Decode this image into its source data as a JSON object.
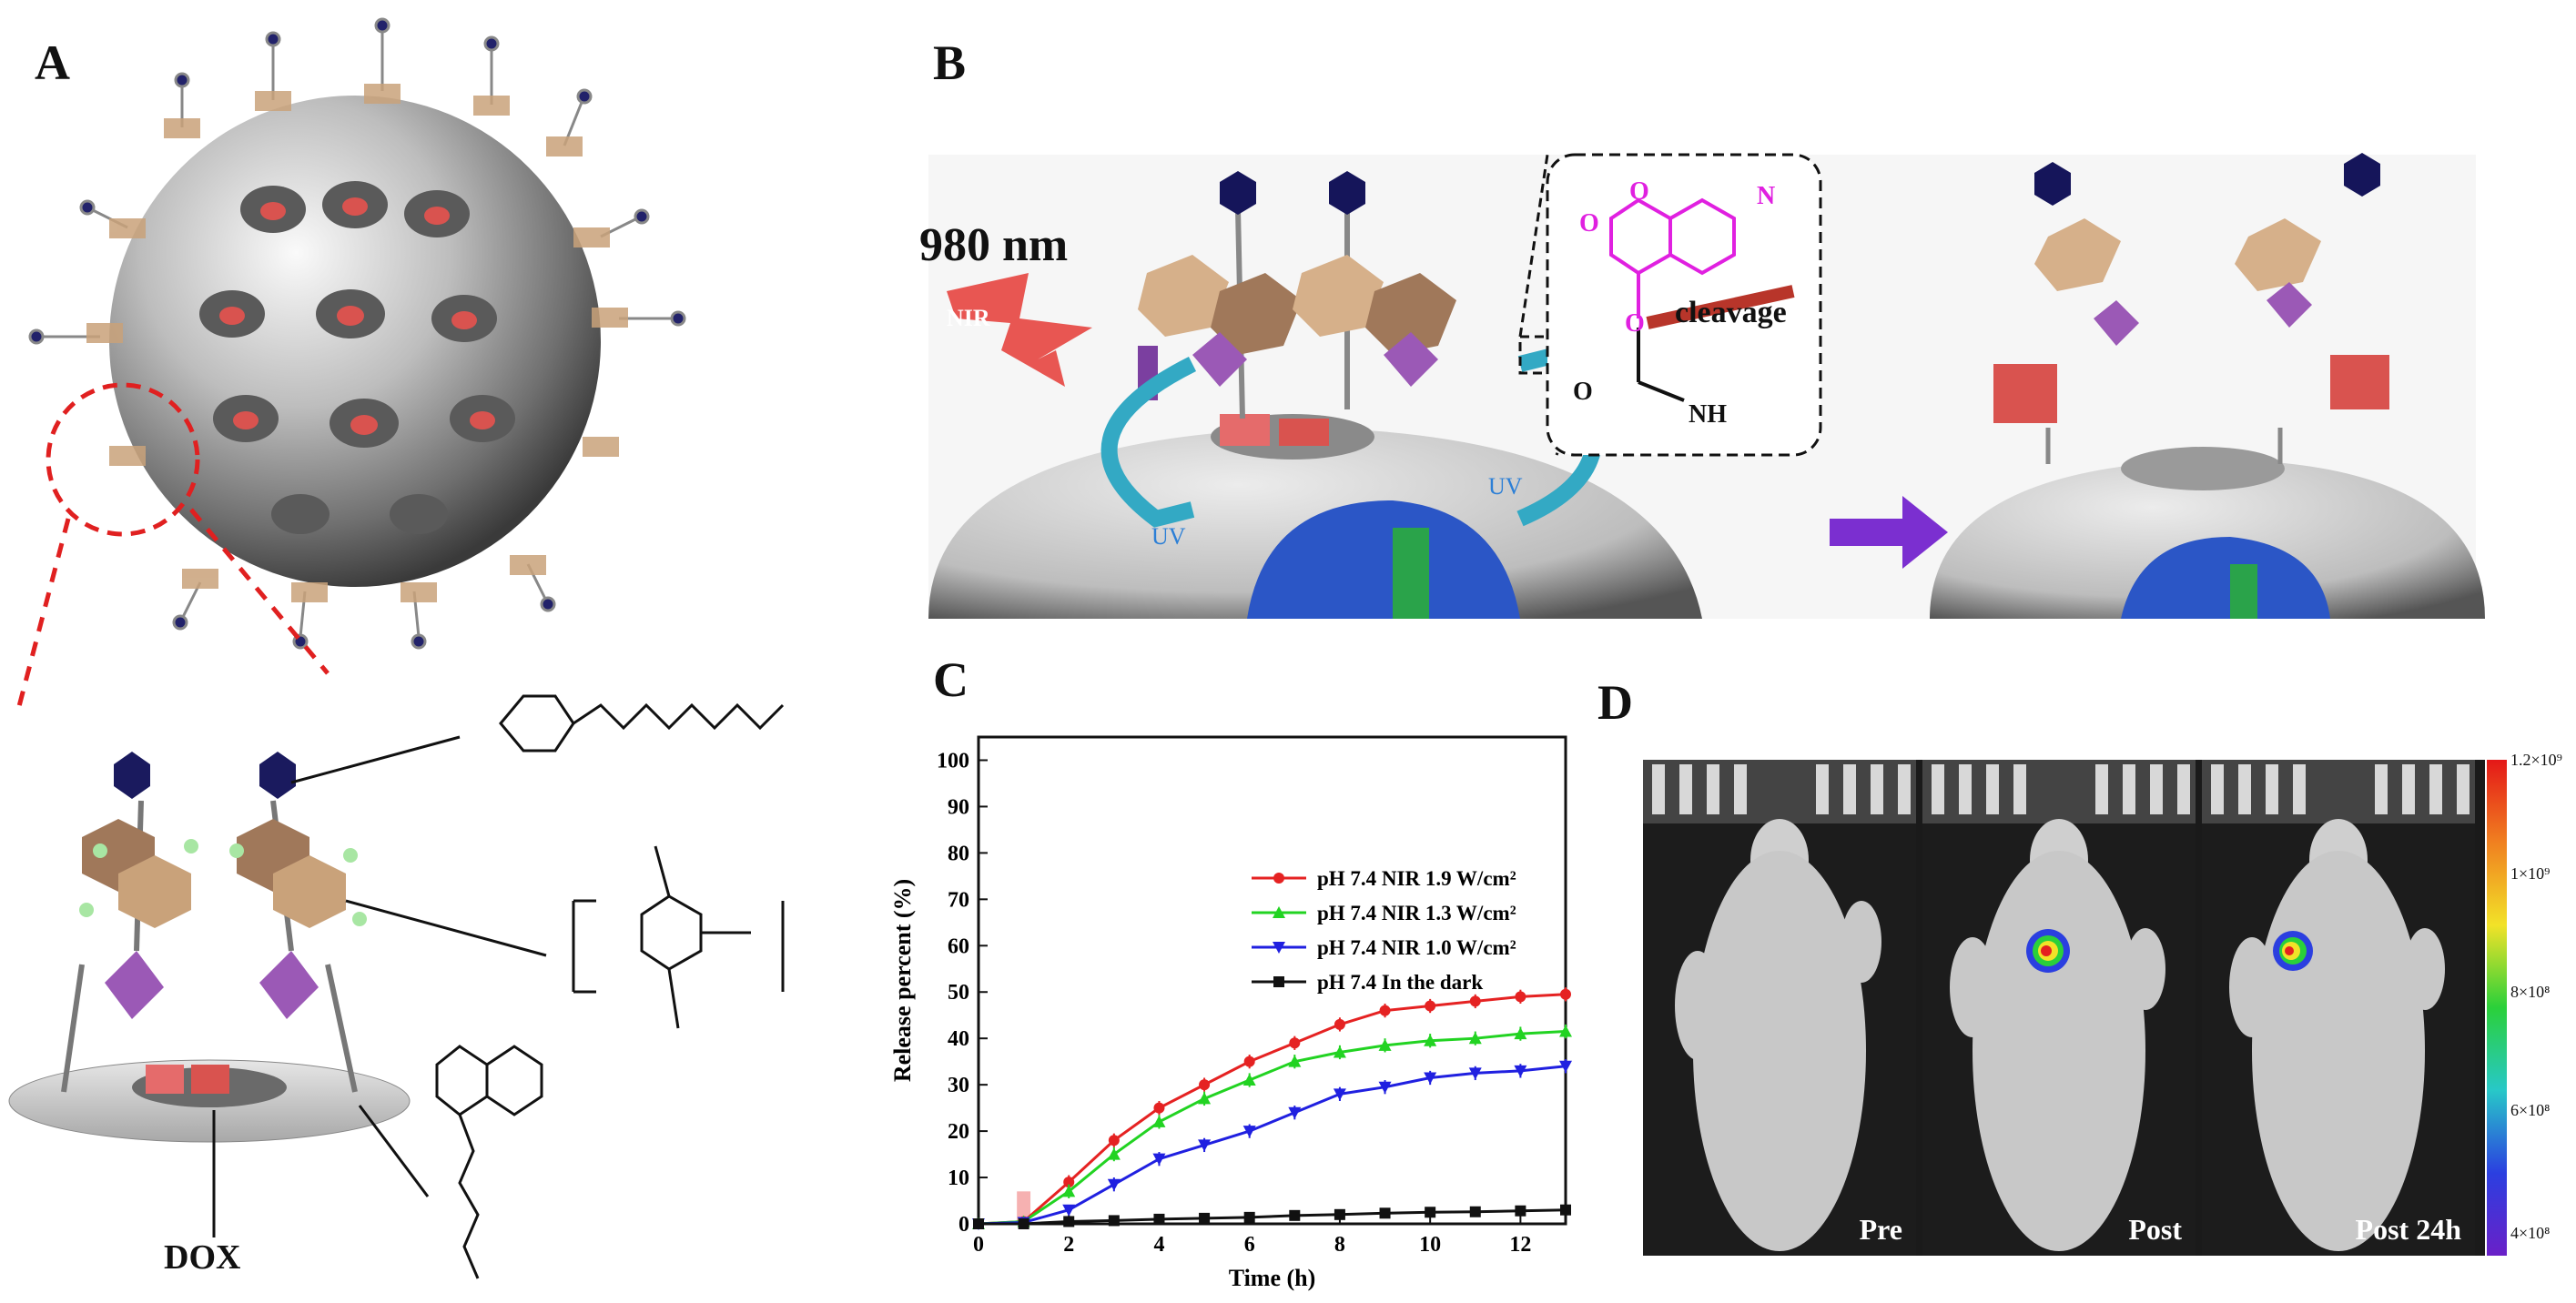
{
  "panels": {
    "a": {
      "letter": "A",
      "dox_label": "DOX"
    },
    "b": {
      "letter": "B",
      "wavelength": "980 nm",
      "nir_label": "NIR",
      "uv_label_1": "UV",
      "uv_label_2": "UV",
      "cleavage_label": "cleavage",
      "atom_o1": "O",
      "atom_o2": "O",
      "atom_n": "N",
      "atom_o3": "O",
      "atom_o4": "O",
      "atom_nh": "NH"
    },
    "c": {
      "letter": "C"
    },
    "d": {
      "letter": "D",
      "frames": [
        "Pre",
        "Post",
        "Post 24h"
      ],
      "colorbar_ticks": [
        "1.2×10⁹",
        "1×10⁹",
        "8×10⁸",
        "6×10⁸",
        "4×10⁸"
      ]
    }
  },
  "chart_data": {
    "type": "line",
    "xlabel": "Time (h)",
    "ylabel": "Release percent (%)",
    "xlim": [
      0,
      13
    ],
    "ylim": [
      0,
      105
    ],
    "xticks": [
      0,
      2,
      4,
      6,
      8,
      10,
      12
    ],
    "yticks": [
      0,
      10,
      20,
      30,
      40,
      50,
      60,
      70,
      80,
      90,
      100
    ],
    "legend_position": "right",
    "series": [
      {
        "name": "pH 7.4   NIR 1.9 W/cm²",
        "color": "#e52222",
        "marker": "circle",
        "x": [
          0,
          1,
          2,
          3,
          4,
          5,
          6,
          7,
          8,
          9,
          10,
          11,
          12,
          13
        ],
        "y": [
          0,
          0.5,
          9,
          18,
          25,
          30,
          35,
          39,
          43,
          46,
          47,
          48,
          49,
          49.5
        ]
      },
      {
        "name": "pH 7.4   NIR 1.3 W/cm²",
        "color": "#22d322",
        "marker": "triangle-up",
        "x": [
          0,
          1,
          2,
          3,
          4,
          5,
          6,
          7,
          8,
          9,
          10,
          11,
          12,
          13
        ],
        "y": [
          0,
          0.5,
          7,
          15,
          22,
          27,
          31,
          35,
          37,
          38.5,
          39.5,
          40,
          41,
          41.5
        ]
      },
      {
        "name": "pH 7.4   NIR 1.0 W/cm²",
        "color": "#2020e0",
        "marker": "triangle-down",
        "x": [
          0,
          1,
          2,
          3,
          4,
          5,
          6,
          7,
          8,
          9,
          10,
          11,
          12,
          13
        ],
        "y": [
          0,
          0.3,
          3,
          8.5,
          14,
          17,
          20,
          24,
          28,
          29.5,
          31.5,
          32.5,
          33,
          34
        ]
      },
      {
        "name": "pH 7.4   In the dark",
        "color": "#111111",
        "marker": "square",
        "x": [
          0,
          1,
          2,
          3,
          4,
          5,
          6,
          7,
          8,
          9,
          10,
          11,
          12,
          13
        ],
        "y": [
          0,
          0,
          0.5,
          0.7,
          1,
          1.2,
          1.4,
          1.8,
          2,
          2.3,
          2.5,
          2.6,
          2.8,
          3
        ]
      }
    ]
  }
}
